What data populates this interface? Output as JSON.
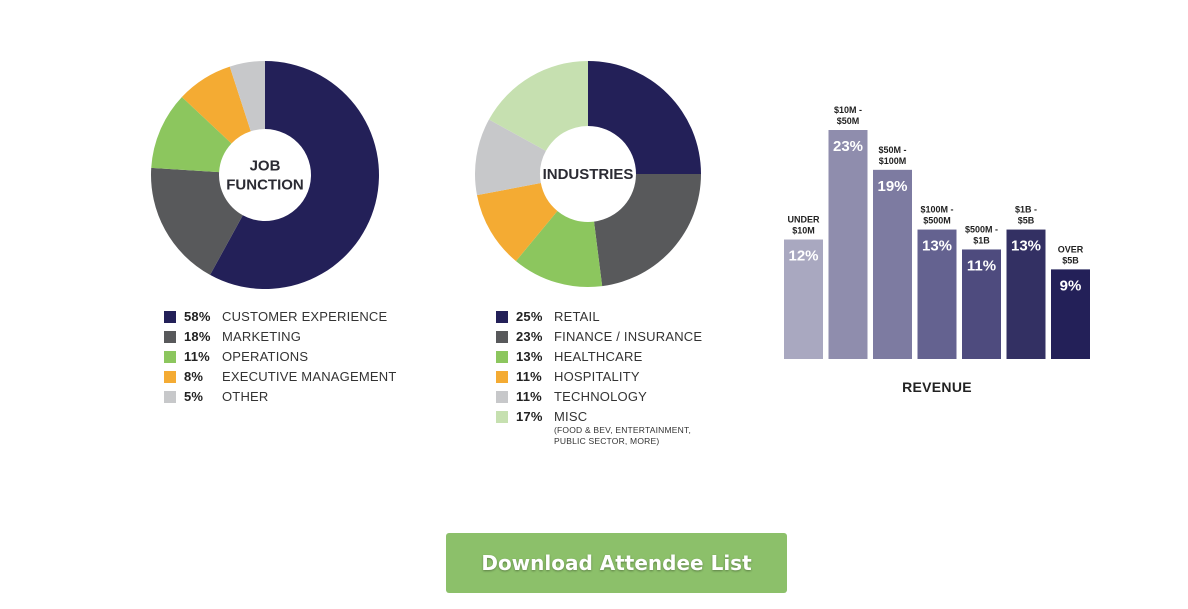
{
  "chart_data": [
    {
      "type": "pie",
      "title_lines": [
        "JOB",
        "FUNCTION"
      ],
      "labels": [
        "CUSTOMER EXPERIENCE",
        "MARKETING",
        "OPERATIONS",
        "EXECUTIVE MANAGEMENT",
        "OTHER"
      ],
      "values": [
        58,
        18,
        11,
        8,
        5
      ],
      "value_labels": [
        "58%",
        "18%",
        "11%",
        "8%",
        "5%"
      ],
      "colors": [
        "#232058",
        "#58595b",
        "#8cc65e",
        "#f4ab33",
        "#c7c8ca"
      ]
    },
    {
      "type": "pie",
      "title_lines": [
        "INDUSTRIES"
      ],
      "labels": [
        "RETAIL",
        "FINANCE / INSURANCE",
        "HEALTHCARE",
        "HOSPITALITY",
        "TECHNOLOGY",
        "MISC"
      ],
      "values": [
        25,
        23,
        13,
        11,
        11,
        17
      ],
      "value_labels": [
        "25%",
        "23%",
        "13%",
        "11%",
        "11%",
        "17%"
      ],
      "note": "(FOOD & BEV, ENTERTAINMENT, PUBLIC SECTOR, MORE)",
      "colors": [
        "#232058",
        "#58595b",
        "#8cc65e",
        "#f4ab33",
        "#c7c8ca",
        "#c6e0b0"
      ]
    },
    {
      "type": "bar",
      "title": "REVENUE",
      "categories": [
        [
          "UNDER",
          "$10M"
        ],
        [
          "$10M -",
          "$50M"
        ],
        [
          "$50M -",
          "$100M"
        ],
        [
          "$100M -",
          "$500M"
        ],
        [
          "$500M -",
          "$1B"
        ],
        [
          "$1B -",
          "$5B"
        ],
        [
          "OVER",
          "$5B"
        ]
      ],
      "values": [
        12,
        23,
        19,
        13,
        11,
        13,
        9
      ],
      "value_labels": [
        "12%",
        "23%",
        "19%",
        "13%",
        "11%",
        "13%",
        "9%"
      ],
      "colors": [
        "#a9a8c0",
        "#8f8dad",
        "#7d7ba1",
        "#646290",
        "#4e4b7e",
        "#333063",
        "#232058"
      ]
    }
  ],
  "button": {
    "label": "Download Attendee List",
    "color": "#8cc06a"
  }
}
